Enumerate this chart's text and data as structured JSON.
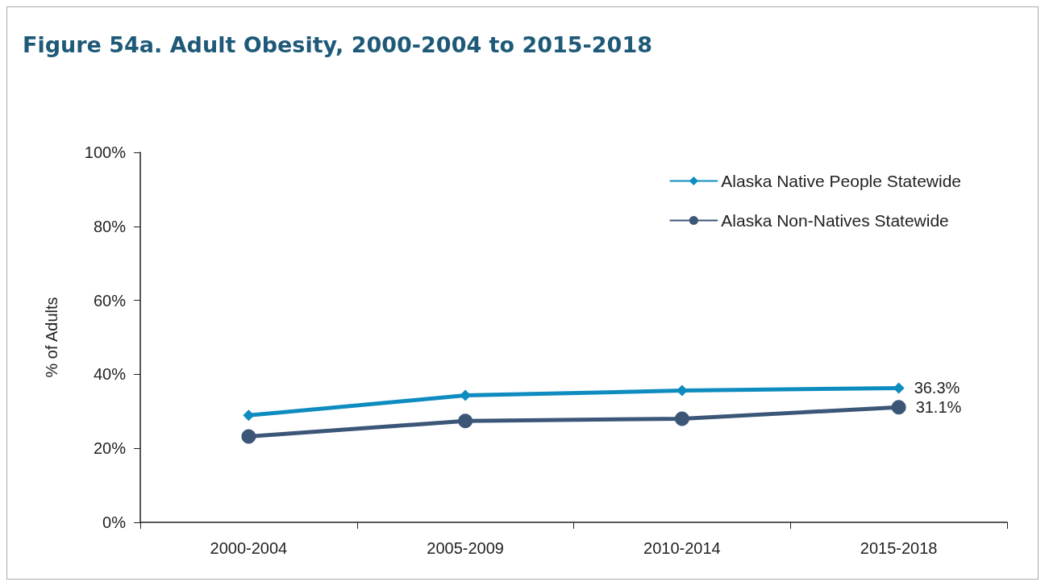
{
  "chart_data": {
    "type": "line",
    "title": "Figure 54a. Adult Obesity, 2000-2004 to 2015-2018",
    "ylabel": "% of Adults",
    "categories": [
      "2000-2004",
      "2005-2009",
      "2010-2014",
      "2015-2018"
    ],
    "series": [
      {
        "name": "Alaska Native People Statewide",
        "color": "#0e8cc0",
        "marker": "diamond",
        "values": [
          28.9,
          34.3,
          35.6,
          36.3
        ],
        "value_labels": [
          null,
          null,
          null,
          "36.3%"
        ]
      },
      {
        "name": "Alaska Non-Natives Statewide",
        "color": "#3b5677",
        "marker": "circle",
        "values": [
          23.2,
          27.4,
          28.0,
          31.1
        ],
        "value_labels": [
          null,
          null,
          null,
          "31.1%"
        ]
      }
    ],
    "ylim": [
      0,
      100
    ],
    "yticks": [
      {
        "value": 0,
        "label": "0%"
      },
      {
        "value": 20,
        "label": "20%"
      },
      {
        "value": 40,
        "label": "40%"
      },
      {
        "value": 60,
        "label": "60%"
      },
      {
        "value": 80,
        "label": "80%"
      },
      {
        "value": 100,
        "label": "100%"
      }
    ],
    "grid": false,
    "legend": "top right",
    "line_style": "solid"
  }
}
